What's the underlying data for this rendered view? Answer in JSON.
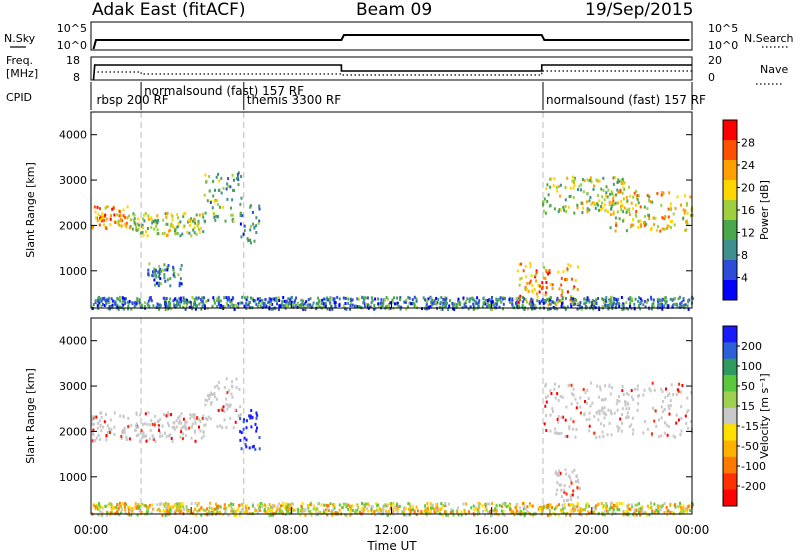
{
  "header": {
    "station": "Adak East (fitACF)",
    "beam": "Beam 09",
    "date": "19/Sep/2015"
  },
  "side_labels": {
    "nsky": "N.Sky",
    "nsearch": "N.Search",
    "freq": "Freq.",
    "freq_unit": "[MHz]",
    "nave": "Nave",
    "cpid": "CPID"
  },
  "nsky_ticks": [
    "10^5",
    "10^0"
  ],
  "freq_ticks": [
    "18",
    "8"
  ],
  "nave_ticks": [
    "20",
    "0"
  ],
  "cpid_labels": [
    {
      "text": "rbsp 200 RF",
      "hour": 0.1
    },
    {
      "text": "normalsound (fast) 157 RF",
      "hour": 2.0
    },
    {
      "text": "themis 3300 RF",
      "hour": 6.1
    },
    {
      "text": "normalsound (fast) 157 RF",
      "hour": 18.05
    }
  ],
  "chart_data": [
    {
      "type": "heatmap",
      "title": "",
      "xlabel": "Time UT",
      "ylabel": "Slant Range [km]",
      "xlim": [
        0,
        24
      ],
      "ylim": [
        180,
        4500
      ],
      "x_ticks": [
        "00:00",
        "04:00",
        "08:00",
        "12:00",
        "16:00",
        "20:00",
        "00:00"
      ],
      "y_ticks": [
        1000,
        2000,
        3000,
        4000
      ],
      "colorbar": {
        "label": "Power [dB]",
        "ticks": [
          4,
          8,
          12,
          16,
          20,
          24,
          28
        ],
        "colors": [
          "#0000ff",
          "#2b4bd8",
          "#3f8f8f",
          "#4ca64c",
          "#9ecf3c",
          "#ffd700",
          "#ff9f00",
          "#ff5000",
          "#ff0000"
        ]
      },
      "echo_regions": [
        {
          "start": 0.0,
          "end": 1.5,
          "range_low": 1950,
          "range_high": 2450,
          "power_db": 22
        },
        {
          "start": 1.5,
          "end": 4.5,
          "range_low": 1800,
          "range_high": 2300,
          "power_db": 14
        },
        {
          "start": 4.5,
          "end": 6.0,
          "range_low": 2100,
          "range_high": 3200,
          "power_db": 10
        },
        {
          "start": 5.9,
          "end": 6.7,
          "range_low": 1600,
          "range_high": 2500,
          "power_db": 6
        },
        {
          "start": 2.2,
          "end": 3.6,
          "range_low": 700,
          "range_high": 1200,
          "power_db": 8
        },
        {
          "start": 18.0,
          "end": 21.5,
          "range_low": 2300,
          "range_high": 3100,
          "power_db": 14
        },
        {
          "start": 20.5,
          "end": 24.0,
          "range_low": 1900,
          "range_high": 2800,
          "power_db": 16
        },
        {
          "start": 17.0,
          "end": 19.5,
          "range_low": 250,
          "range_high": 1200,
          "power_db": 20
        },
        {
          "start": 0.0,
          "end": 24.0,
          "range_low": 180,
          "range_high": 450,
          "power_db": 6
        }
      ]
    },
    {
      "type": "heatmap",
      "title": "",
      "xlabel": "Time UT",
      "ylabel": "Slant Range [km]",
      "xlim": [
        0,
        24
      ],
      "ylim": [
        180,
        4500
      ],
      "x_ticks": [
        "00:00",
        "04:00",
        "08:00",
        "12:00",
        "16:00",
        "20:00",
        "00:00"
      ],
      "y_ticks": [
        1000,
        2000,
        3000,
        4000
      ],
      "colorbar": {
        "label": "Velocity [m s⁻¹]",
        "ticks": [
          200,
          100,
          50,
          15,
          -15,
          -50,
          -100,
          -200
        ],
        "colors": [
          "#1a1aff",
          "#2c5fd8",
          "#2f9a60",
          "#5ac83c",
          "#a0d050",
          "#c8c8c8",
          "#ffe000",
          "#ffb000",
          "#ff7800",
          "#ff3000",
          "#ff0000"
        ]
      },
      "echo_regions": [
        {
          "start": 0.0,
          "end": 4.5,
          "range_low": 1800,
          "range_high": 2450,
          "velocity": 0
        },
        {
          "start": 4.5,
          "end": 6.0,
          "range_low": 2100,
          "range_high": 3200,
          "velocity": 0
        },
        {
          "start": 5.9,
          "end": 6.7,
          "range_low": 1600,
          "range_high": 2500,
          "velocity": 200
        },
        {
          "start": 18.0,
          "end": 24.0,
          "range_low": 1900,
          "range_high": 3100,
          "velocity": 0
        },
        {
          "start": 0.0,
          "end": 24.0,
          "range_low": 180,
          "range_high": 450,
          "velocity": -40
        },
        {
          "start": 18.5,
          "end": 19.5,
          "range_low": 500,
          "range_high": 1200,
          "velocity": 0
        }
      ]
    }
  ]
}
